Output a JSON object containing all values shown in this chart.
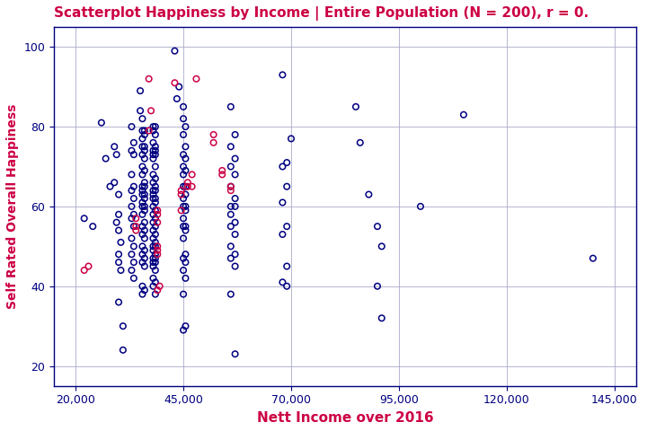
{
  "title": "Scatterplot Happiness by Income | Entire Population (N = 200), r = 0.",
  "xlabel": "Nett Income over 2016",
  "ylabel": "Self Rated Overall Happiness",
  "title_color": "#CC0044",
  "axis_label_color": "#CC0044",
  "tick_color": "#000080",
  "background_color": "#ffffff",
  "plot_bg_color": "#ffffff",
  "grid_color": "#aaaacc",
  "navy_color": "#000080",
  "red_color": "#CC0044",
  "xlim": [
    15000,
    150000
  ],
  "ylim": [
    15,
    105
  ],
  "xticks": [
    20000,
    45000,
    70000,
    95000,
    120000,
    145000
  ],
  "yticks": [
    20,
    40,
    60,
    80,
    100
  ],
  "navy_points": [
    [
      22000,
      57
    ],
    [
      24000,
      55
    ],
    [
      27000,
      72
    ],
    [
      26000,
      81
    ],
    [
      28000,
      65
    ],
    [
      29000,
      75
    ],
    [
      29500,
      73
    ],
    [
      29000,
      66
    ],
    [
      30000,
      63
    ],
    [
      30000,
      58
    ],
    [
      29500,
      56
    ],
    [
      30000,
      54
    ],
    [
      30500,
      51
    ],
    [
      30000,
      48
    ],
    [
      30000,
      46
    ],
    [
      30500,
      44
    ],
    [
      30000,
      36
    ],
    [
      31000,
      30
    ],
    [
      31000,
      24
    ],
    [
      33000,
      80
    ],
    [
      33500,
      76
    ],
    [
      33000,
      74
    ],
    [
      33500,
      73
    ],
    [
      33000,
      68
    ],
    [
      33500,
      65
    ],
    [
      33000,
      64
    ],
    [
      33500,
      62
    ],
    [
      33000,
      60
    ],
    [
      33500,
      58
    ],
    [
      33000,
      57
    ],
    [
      33500,
      55
    ],
    [
      33000,
      52
    ],
    [
      33500,
      50
    ],
    [
      33000,
      48
    ],
    [
      33500,
      46
    ],
    [
      33000,
      44
    ],
    [
      33500,
      42
    ],
    [
      35000,
      89
    ],
    [
      35000,
      84
    ],
    [
      35500,
      82
    ],
    [
      36000,
      79
    ],
    [
      35500,
      79
    ],
    [
      36000,
      78
    ],
    [
      35500,
      77
    ],
    [
      36000,
      75
    ],
    [
      35500,
      75
    ],
    [
      36000,
      74
    ],
    [
      35500,
      73
    ],
    [
      36000,
      72
    ],
    [
      35500,
      70
    ],
    [
      36000,
      69
    ],
    [
      35500,
      68
    ],
    [
      36000,
      66
    ],
    [
      35500,
      65
    ],
    [
      36000,
      65
    ],
    [
      35500,
      64
    ],
    [
      36000,
      63
    ],
    [
      35500,
      63
    ],
    [
      36000,
      62
    ],
    [
      35500,
      61
    ],
    [
      36000,
      60
    ],
    [
      35500,
      60
    ],
    [
      36000,
      59
    ],
    [
      35500,
      58
    ],
    [
      36000,
      56
    ],
    [
      35500,
      55
    ],
    [
      36000,
      54
    ],
    [
      35500,
      53
    ],
    [
      36000,
      52
    ],
    [
      35500,
      50
    ],
    [
      36000,
      49
    ],
    [
      35500,
      48
    ],
    [
      36000,
      47
    ],
    [
      35500,
      46
    ],
    [
      36000,
      45
    ],
    [
      35500,
      40
    ],
    [
      36000,
      39
    ],
    [
      35500,
      38
    ],
    [
      38000,
      80
    ],
    [
      38500,
      80
    ],
    [
      38000,
      79
    ],
    [
      38500,
      78
    ],
    [
      38000,
      76
    ],
    [
      38500,
      75
    ],
    [
      38000,
      74
    ],
    [
      38500,
      74
    ],
    [
      38000,
      73
    ],
    [
      38500,
      73
    ],
    [
      38000,
      72
    ],
    [
      38500,
      70
    ],
    [
      38000,
      68
    ],
    [
      38500,
      67
    ],
    [
      38000,
      66
    ],
    [
      38500,
      65
    ],
    [
      38000,
      64
    ],
    [
      38500,
      64
    ],
    [
      38000,
      63
    ],
    [
      38500,
      62
    ],
    [
      38000,
      62
    ],
    [
      38500,
      61
    ],
    [
      38000,
      60
    ],
    [
      38500,
      59
    ],
    [
      38000,
      58
    ],
    [
      38500,
      57
    ],
    [
      38000,
      56
    ],
    [
      38500,
      55
    ],
    [
      38000,
      54
    ],
    [
      38500,
      53
    ],
    [
      38000,
      52
    ],
    [
      38500,
      51
    ],
    [
      38000,
      50
    ],
    [
      38500,
      50
    ],
    [
      38000,
      49
    ],
    [
      38500,
      48
    ],
    [
      38000,
      47
    ],
    [
      38500,
      47
    ],
    [
      38000,
      46
    ],
    [
      38500,
      46
    ],
    [
      38000,
      45
    ],
    [
      38500,
      44
    ],
    [
      38000,
      42
    ],
    [
      38500,
      41
    ],
    [
      38000,
      40
    ],
    [
      38500,
      38
    ],
    [
      43000,
      99
    ],
    [
      44000,
      90
    ],
    [
      43500,
      87
    ],
    [
      45000,
      85
    ],
    [
      45000,
      82
    ],
    [
      45500,
      80
    ],
    [
      45000,
      78
    ],
    [
      45500,
      75
    ],
    [
      45000,
      73
    ],
    [
      45500,
      72
    ],
    [
      45000,
      70
    ],
    [
      45500,
      69
    ],
    [
      45000,
      68
    ],
    [
      45500,
      65
    ],
    [
      45000,
      65
    ],
    [
      45500,
      63
    ],
    [
      45000,
      62
    ],
    [
      45500,
      60
    ],
    [
      45000,
      60
    ],
    [
      45500,
      59
    ],
    [
      45000,
      57
    ],
    [
      45500,
      55
    ],
    [
      45000,
      55
    ],
    [
      45500,
      54
    ],
    [
      45000,
      52
    ],
    [
      45500,
      48
    ],
    [
      45000,
      47
    ],
    [
      45500,
      46
    ],
    [
      45000,
      44
    ],
    [
      45500,
      42
    ],
    [
      45000,
      38
    ],
    [
      45500,
      30
    ],
    [
      45000,
      29
    ],
    [
      56000,
      85
    ],
    [
      57000,
      78
    ],
    [
      56000,
      75
    ],
    [
      57000,
      72
    ],
    [
      56000,
      70
    ],
    [
      57000,
      68
    ],
    [
      56000,
      65
    ],
    [
      57000,
      62
    ],
    [
      56000,
      60
    ],
    [
      57000,
      60
    ],
    [
      56000,
      58
    ],
    [
      57000,
      56
    ],
    [
      56000,
      55
    ],
    [
      57000,
      53
    ],
    [
      56000,
      50
    ],
    [
      57000,
      48
    ],
    [
      56000,
      47
    ],
    [
      57000,
      45
    ],
    [
      56000,
      38
    ],
    [
      57000,
      23
    ],
    [
      68000,
      93
    ],
    [
      70000,
      77
    ],
    [
      69000,
      71
    ],
    [
      68000,
      70
    ],
    [
      69000,
      65
    ],
    [
      68000,
      61
    ],
    [
      69000,
      55
    ],
    [
      68000,
      53
    ],
    [
      69000,
      45
    ],
    [
      68000,
      41
    ],
    [
      69000,
      40
    ],
    [
      85000,
      85
    ],
    [
      86000,
      76
    ],
    [
      88000,
      63
    ],
    [
      90000,
      55
    ],
    [
      91000,
      50
    ],
    [
      90000,
      40
    ],
    [
      91000,
      32
    ],
    [
      100000,
      60
    ],
    [
      110000,
      83
    ],
    [
      140000,
      47
    ]
  ],
  "red_points": [
    [
      22000,
      44
    ],
    [
      23000,
      45
    ],
    [
      34000,
      57
    ],
    [
      34000,
      55
    ],
    [
      34000,
      54
    ],
    [
      37000,
      92
    ],
    [
      37500,
      84
    ],
    [
      37000,
      79
    ],
    [
      39000,
      59
    ],
    [
      39000,
      58
    ],
    [
      39000,
      56
    ],
    [
      39000,
      50
    ],
    [
      39000,
      49
    ],
    [
      39000,
      48
    ],
    [
      39000,
      39
    ],
    [
      39500,
      40
    ],
    [
      43000,
      91
    ],
    [
      44500,
      64
    ],
    [
      44500,
      63
    ],
    [
      44500,
      59
    ],
    [
      46000,
      66
    ],
    [
      46000,
      65
    ],
    [
      47000,
      68
    ],
    [
      47000,
      65
    ],
    [
      48000,
      92
    ],
    [
      52000,
      78
    ],
    [
      52000,
      76
    ],
    [
      54000,
      69
    ],
    [
      54000,
      68
    ],
    [
      56000,
      65
    ],
    [
      56000,
      64
    ]
  ]
}
